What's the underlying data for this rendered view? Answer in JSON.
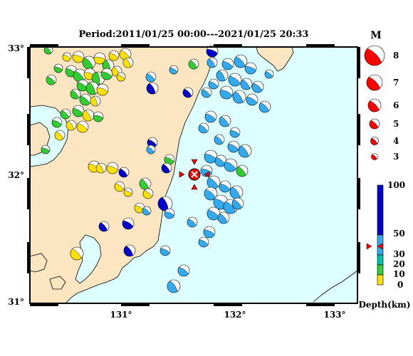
{
  "title": "Period:2011/01/25 00:00---2021/01/25 20:33",
  "lat_labels": [
    "33°",
    "32°",
    "31°"
  ],
  "lon_labels": [
    "131°",
    "132°",
    "133°"
  ],
  "magnitude_legend": {
    "header": "M",
    "items": [
      "8",
      "7",
      "6",
      "5",
      "4",
      "3"
    ]
  },
  "depth_legend": {
    "title": "Depth(km)",
    "ticks": [
      "100",
      "50",
      "30",
      "20",
      "10",
      "0"
    ],
    "colors": {
      "shallow_0_10": "#ffe000",
      "depth_10_20": "#33cc33",
      "depth_20_30": "#00c0a8",
      "depth_30_50": "#33aaee",
      "deep_50_100": "#0000cc"
    }
  },
  "colors": {
    "ocean": "#ddffff",
    "land": "#fce6c2",
    "mainshock": "#ff0000",
    "coastline": "#000000"
  },
  "icons": {
    "mainshock_marker": "red-beachball-with-arrows",
    "event": "focal-mechanism-beachball"
  }
}
